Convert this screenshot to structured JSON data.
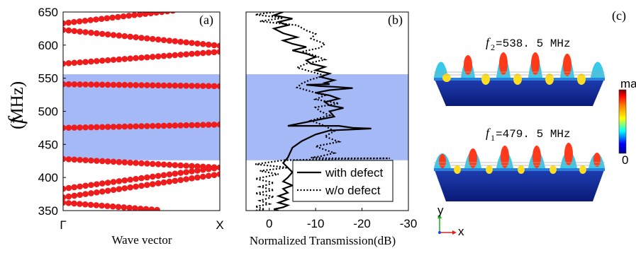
{
  "panel_a": {
    "label": "(a)",
    "ylabel_italic": "f",
    "ylabel_unit": "(MHz)",
    "xlabel": "Wave vector",
    "x_ticks": [
      "Γ",
      "X"
    ],
    "y_ticks": [
      "350",
      "400",
      "450",
      "500",
      "550",
      "600",
      "650"
    ]
  },
  "panel_b": {
    "label": "(b)",
    "xlabel": "Normalized Transmission(dB)",
    "x_ticks": [
      "0",
      "-10",
      "-20",
      "-30"
    ],
    "legend": [
      "with defect",
      "w/o defect"
    ]
  },
  "panel_c": {
    "label": "(c)",
    "mode2_sym": "f",
    "mode2_sub": "2",
    "mode2_value": "=538. 5  MHz",
    "mode1_sym": "f",
    "mode1_sub": "1",
    "mode1_value": "=479. 5  MHz",
    "colorbar_max": "max",
    "colorbar_min": "0",
    "axis_y": "y",
    "axis_x": "x"
  },
  "colors": {
    "band_points": "#ee1c1c",
    "bandgap_fill": "#a5b9f6",
    "curve": "#000000"
  },
  "chart_data": [
    {
      "type": "scatter",
      "panel": "(a)",
      "title": "",
      "xlabel": "Wave vector",
      "ylabel": "f (MHz)",
      "xlim": [
        0,
        1
      ],
      "ylim": [
        350,
        650
      ],
      "x_tick_labels": [
        "Γ",
        "X"
      ],
      "bandgap_mhz": [
        426,
        556
      ],
      "series": [
        {
          "x": [
            0,
            1
          ],
          "y": [
            370,
            405
          ]
        },
        {
          "x": [
            0,
            1
          ],
          "y": [
            383,
            415
          ]
        },
        {
          "x": [
            0,
            1
          ],
          "y": [
            428,
            415
          ]
        },
        {
          "x": [
            0,
            1
          ],
          "y": [
            475,
            480
          ]
        },
        {
          "x": [
            0,
            1
          ],
          "y": [
            541,
            538
          ]
        },
        {
          "x": [
            0,
            1
          ],
          "y": [
            572,
            590
          ]
        },
        {
          "x": [
            0,
            1
          ],
          "y": [
            623,
            599
          ]
        },
        {
          "x": [
            0,
            0.7
          ],
          "y": [
            633,
            652
          ]
        },
        {
          "x": [
            0,
            0.6
          ],
          "y": [
            362,
            351
          ]
        }
      ]
    },
    {
      "type": "line",
      "panel": "(b)",
      "title": "",
      "xlabel": "Normalized Transmission(dB)",
      "ylabel": "f (MHz)",
      "xlim": [
        5,
        -30
      ],
      "ylim": [
        350,
        650
      ],
      "x_tick_labels": [
        "0",
        "-10",
        "-20",
        "-30"
      ],
      "bandgap_mhz": [
        426,
        556
      ],
      "legend_position": "bottom-right",
      "series": [
        {
          "name": "with defect",
          "style": "solid",
          "x": [
            -3,
            -1,
            -5,
            -2,
            -4,
            -1,
            -3,
            -6,
            -3,
            -5,
            -8,
            -5,
            -8,
            -10,
            -8,
            -9,
            -12,
            -10,
            -13,
            -11,
            -14,
            -12,
            -13,
            -8,
            -11,
            -14,
            -18,
            -13,
            -10,
            -13,
            -15,
            -12,
            -13,
            -16,
            -13,
            -14,
            -4,
            -15,
            -18,
            -22,
            -13,
            -10,
            -7,
            -5,
            -4,
            -3,
            -4,
            -5,
            -4,
            -3,
            -5,
            -3,
            -4,
            -2,
            -4,
            -2,
            -4,
            -3,
            -1,
            -2
          ],
          "y": [
            650,
            645,
            640,
            635,
            630,
            625,
            618,
            612,
            607,
            602,
            597,
            592,
            587,
            582,
            577,
            572,
            567,
            562,
            557,
            552,
            547,
            543,
            541,
            540,
            538,
            537,
            535,
            532,
            528,
            524,
            519,
            514,
            509,
            505,
            500,
            492,
            478,
            478,
            475,
            474,
            471,
            465,
            455,
            445,
            430,
            422,
            415,
            408,
            400,
            394,
            388,
            383,
            377,
            372,
            367,
            362,
            358,
            355,
            352,
            350
          ]
        },
        {
          "name": "w/o defect",
          "style": "dotted",
          "x": [
            -1,
            3,
            -3,
            2,
            -6,
            -8,
            -10,
            -9,
            -12,
            -11,
            -7,
            -10,
            -12,
            -8,
            -6,
            -9,
            -12,
            -9,
            -7,
            -6,
            -9,
            -12,
            -10,
            -15,
            -10,
            -11,
            -13,
            -9,
            -12,
            -14,
            -12,
            -15,
            -10,
            -12,
            -14,
            -11,
            -9,
            -13,
            -19,
            -26,
            -15,
            -3,
            3,
            -4,
            2,
            -2,
            3,
            -1,
            2,
            -1,
            3,
            -1,
            2,
            0,
            3,
            1,
            3
          ],
          "y": [
            650,
            646,
            641,
            636,
            630,
            622,
            617,
            610,
            602,
            596,
            590,
            584,
            578,
            572,
            566,
            560,
            554,
            548,
            542,
            536,
            530,
            524,
            518,
            512,
            506,
            500,
            494,
            486,
            478,
            470,
            462,
            454,
            447,
            442,
            437,
            432,
            430,
            429,
            429,
            429,
            428,
            426,
            420,
            415,
            410,
            405,
            398,
            392,
            386,
            381,
            376,
            371,
            365,
            360,
            356,
            352,
            350
          ]
        }
      ]
    }
  ]
}
